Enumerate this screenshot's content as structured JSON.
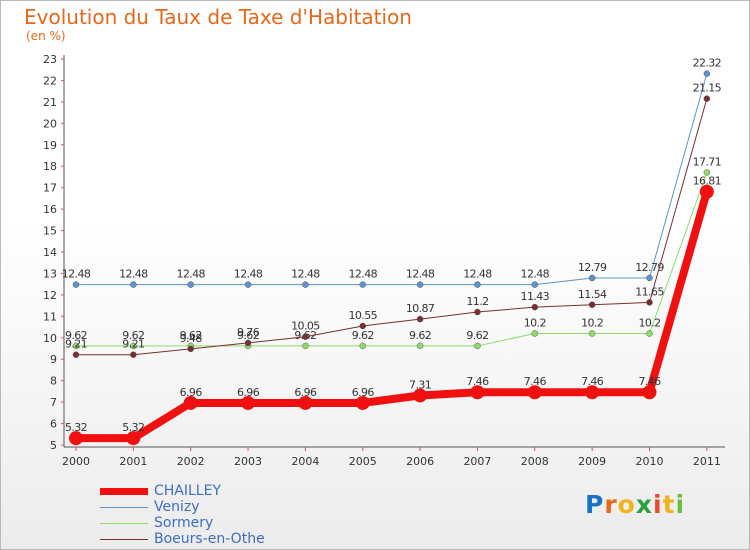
{
  "title": "Evolution du Taux de Taxe d'Habitation",
  "unit": "(en %)",
  "logo": {
    "text": "Proxiti",
    "colors": [
      "#1a73c8",
      "#e8681a",
      "#f1b21a",
      "#2ba03f",
      "#e84d2a",
      "#f1b21a",
      "#6bbd3d"
    ]
  },
  "colors": {
    "title": "#e8681a",
    "axis": "#555555",
    "grid_tick": "#e85050",
    "label": "#333333"
  },
  "chart_data": {
    "type": "line",
    "title": "Evolution du Taux de Taxe d'Habitation",
    "ylabel": "(en %)",
    "xlabel": "",
    "categories": [
      "2000",
      "2001",
      "2002",
      "2003",
      "2004",
      "2005",
      "2006",
      "2007",
      "2008",
      "2009",
      "2010",
      "2011"
    ],
    "ylim": [
      5,
      23
    ],
    "yticks": [
      5,
      6,
      7,
      8,
      9,
      10,
      11,
      12,
      13,
      14,
      15,
      16,
      17,
      18,
      19,
      20,
      21,
      22,
      23
    ],
    "series": [
      {
        "name": "Venizy",
        "color": "#5a95cf",
        "width": 1,
        "marker": 3,
        "values": [
          12.48,
          12.48,
          12.48,
          12.48,
          12.48,
          12.48,
          12.48,
          12.48,
          12.48,
          12.79,
          12.79,
          22.32
        ],
        "labels": [
          "12.48",
          "12.48",
          "12.48",
          "12.48",
          "12.48",
          "12.48",
          "12.48",
          "12.48",
          "12.48",
          "12.79",
          "12.79",
          "22.32"
        ]
      },
      {
        "name": "Sormery",
        "color": "#8fdc6a",
        "width": 1,
        "marker": 3,
        "values": [
          9.62,
          9.62,
          9.62,
          9.62,
          9.62,
          9.62,
          9.62,
          9.62,
          10.2,
          10.2,
          10.2,
          17.71
        ],
        "labels": [
          "9.62",
          "9.62",
          "9.62",
          "9.62",
          "9.62",
          "9.62",
          "9.62",
          "9.62",
          "10.2",
          "10.2",
          "10.2",
          "17.71"
        ]
      },
      {
        "name": "Boeurs-en-Othe",
        "color": "#7a2f2f",
        "width": 1,
        "marker": 3,
        "values": [
          9.21,
          9.21,
          9.48,
          9.76,
          10.05,
          10.55,
          10.87,
          11.2,
          11.43,
          11.54,
          11.65,
          21.15
        ],
        "labels": [
          "9.21",
          "9.21",
          "9.48",
          "9.76",
          "10.05",
          "10.55",
          "10.87",
          "11.2",
          "11.43",
          "11.54",
          "11.65",
          "21.15"
        ]
      },
      {
        "name": "CHAILLEY",
        "color": "#f01010",
        "width": 8,
        "marker": 7,
        "values": [
          5.32,
          5.32,
          6.96,
          6.96,
          6.96,
          6.96,
          7.31,
          7.46,
          7.46,
          7.46,
          7.46,
          16.81
        ],
        "labels": [
          "5.32",
          "5.32",
          "6.96",
          "6.96",
          "6.96",
          "6.96",
          "7.31",
          "7.46",
          "7.46",
          "7.46",
          "7.46",
          "16.81"
        ]
      }
    ],
    "legend": [
      {
        "name": "CHAILLEY",
        "color": "#f01010",
        "width": 7
      },
      {
        "name": "Venizy",
        "color": "#5a95cf",
        "width": 1
      },
      {
        "name": "Sormery",
        "color": "#8fdc6a",
        "width": 1
      },
      {
        "name": "Boeurs-en-Othe",
        "color": "#7a2f2f",
        "width": 1
      }
    ]
  }
}
